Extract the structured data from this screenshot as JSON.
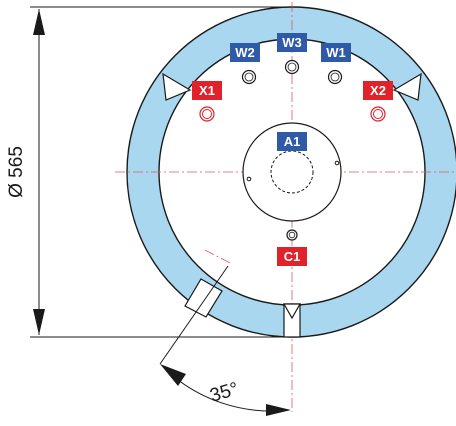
{
  "dimensions": {
    "diameter": "Ø 565",
    "angle": "35°"
  },
  "colors": {
    "ring": "#a8d7ef",
    "blue_tag": "#2e5aa8",
    "red_tag": "#e0222b",
    "outline": "#1a1a1a",
    "centerline": "#e05a5a"
  },
  "tags": {
    "w1": "W1",
    "w2": "W2",
    "w3": "W3",
    "x1": "X1",
    "x2": "X2",
    "a1": "A1",
    "c1": "C1"
  }
}
